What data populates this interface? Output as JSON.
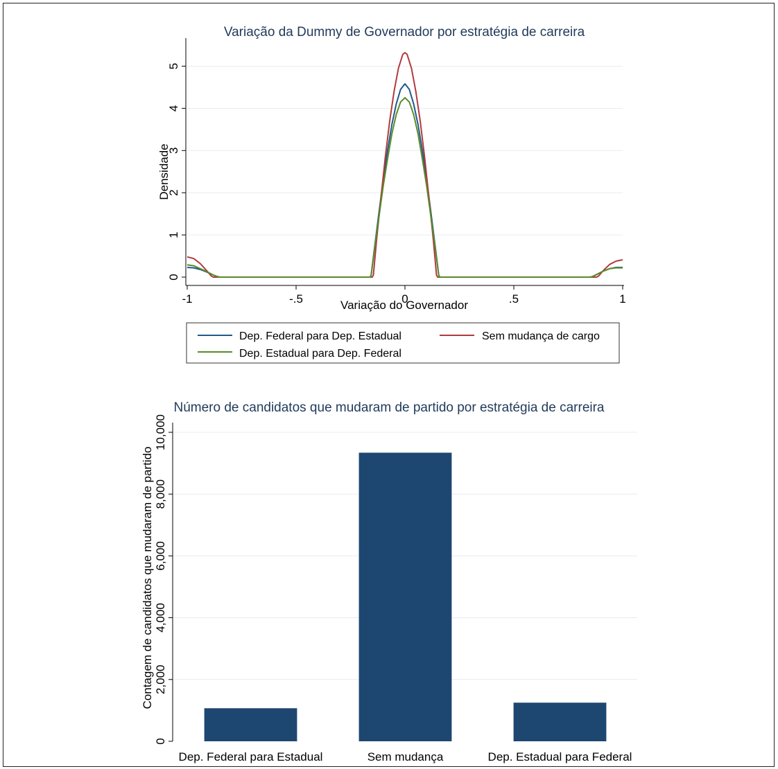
{
  "chart_data": [
    {
      "type": "line",
      "title": "Variação da Dummy de Governador por estratégia de carreira",
      "xlabel": "Variação do Governador",
      "ylabel": "Densidade",
      "xlim": [
        -1,
        1
      ],
      "ylim": [
        0,
        5.5
      ],
      "x_ticks": [
        -1,
        -0.5,
        0,
        0.5,
        1
      ],
      "x_tick_labels": [
        "-1",
        "-.5",
        "0",
        ".5",
        "1"
      ],
      "y_ticks": [
        0,
        1,
        2,
        3,
        4,
        5
      ],
      "y_tick_labels": [
        "0",
        "1",
        "2",
        "3",
        "4",
        "5"
      ],
      "grid": true,
      "legend_position": "bottom",
      "series": [
        {
          "name": "Dep. Federal para Dep. Estadual",
          "color": "#1f5a8a",
          "x": [
            -1.0,
            -0.97,
            -0.94,
            -0.91,
            -0.88,
            -0.86,
            -0.85,
            -0.2,
            -0.16,
            -0.155,
            -0.14,
            -0.12,
            -0.1,
            -0.08,
            -0.06,
            -0.04,
            -0.02,
            0.0,
            0.02,
            0.04,
            0.06,
            0.08,
            0.1,
            0.12,
            0.14,
            0.155,
            0.16,
            0.2,
            0.85,
            0.86,
            0.88,
            0.91,
            0.94,
            0.97,
            1.0
          ],
          "y": [
            0.23,
            0.22,
            0.18,
            0.12,
            0.05,
            0.01,
            0.0,
            0.0,
            0.0,
            0.05,
            0.68,
            1.5,
            2.3,
            3.0,
            3.62,
            4.1,
            4.45,
            4.58,
            4.45,
            4.1,
            3.62,
            3.0,
            2.3,
            1.5,
            0.68,
            0.05,
            0.0,
            0.0,
            0.0,
            0.01,
            0.06,
            0.14,
            0.2,
            0.23,
            0.23
          ]
        },
        {
          "name": "Sem mudança de cargo",
          "color": "#b03a3e",
          "x": [
            -1.0,
            -0.97,
            -0.94,
            -0.91,
            -0.89,
            -0.88,
            -0.85,
            -0.2,
            -0.15,
            -0.145,
            -0.13,
            -0.11,
            -0.09,
            -0.07,
            -0.05,
            -0.03,
            -0.01,
            0.0,
            0.01,
            0.03,
            0.05,
            0.07,
            0.09,
            0.11,
            0.13,
            0.145,
            0.15,
            0.2,
            0.85,
            0.88,
            0.89,
            0.91,
            0.94,
            0.97,
            1.0
          ],
          "y": [
            0.48,
            0.44,
            0.32,
            0.15,
            0.03,
            0.0,
            0.0,
            0.0,
            0.0,
            0.05,
            0.9,
            1.9,
            2.85,
            3.7,
            4.4,
            4.95,
            5.28,
            5.32,
            5.28,
            4.95,
            4.4,
            3.7,
            2.85,
            1.9,
            0.9,
            0.05,
            0.0,
            0.0,
            0.0,
            0.0,
            0.03,
            0.15,
            0.3,
            0.38,
            0.41
          ]
        },
        {
          "name": "Dep. Estadual para Dep. Federal",
          "color": "#5a8a2a",
          "x": [
            -1.0,
            -0.97,
            -0.94,
            -0.91,
            -0.88,
            -0.86,
            -0.85,
            -0.2,
            -0.16,
            -0.155,
            -0.14,
            -0.12,
            -0.1,
            -0.08,
            -0.06,
            -0.04,
            -0.02,
            0.0,
            0.02,
            0.04,
            0.06,
            0.08,
            0.1,
            0.12,
            0.14,
            0.155,
            0.16,
            0.2,
            0.85,
            0.86,
            0.88,
            0.91,
            0.94,
            0.97,
            1.0
          ],
          "y": [
            0.29,
            0.27,
            0.2,
            0.13,
            0.05,
            0.01,
            0.0,
            0.0,
            0.0,
            0.05,
            0.65,
            1.4,
            2.15,
            2.8,
            3.4,
            3.85,
            4.15,
            4.25,
            4.15,
            3.85,
            3.4,
            2.8,
            2.15,
            1.4,
            0.65,
            0.05,
            0.0,
            0.0,
            0.0,
            0.01,
            0.06,
            0.14,
            0.2,
            0.22,
            0.22
          ]
        }
      ]
    },
    {
      "type": "bar",
      "title": "Número de candidatos que mudaram de partido por estratégia de carreira",
      "xlabel": "",
      "ylabel": "Contagem de candidatos que mudaram de partido",
      "categories": [
        "Dep. Federal para Estadual",
        "Sem mudança",
        "Dep. Estadual para Federal"
      ],
      "values": [
        1070,
        9340,
        1250
      ],
      "ylim": [
        0,
        10000
      ],
      "y_ticks": [
        0,
        2000,
        4000,
        6000,
        8000,
        10000
      ],
      "y_tick_labels": [
        "0",
        "2,000",
        "4,000",
        "6,000",
        "8,000",
        "10,000"
      ],
      "grid": true,
      "bar_color": "#1d4770"
    }
  ]
}
